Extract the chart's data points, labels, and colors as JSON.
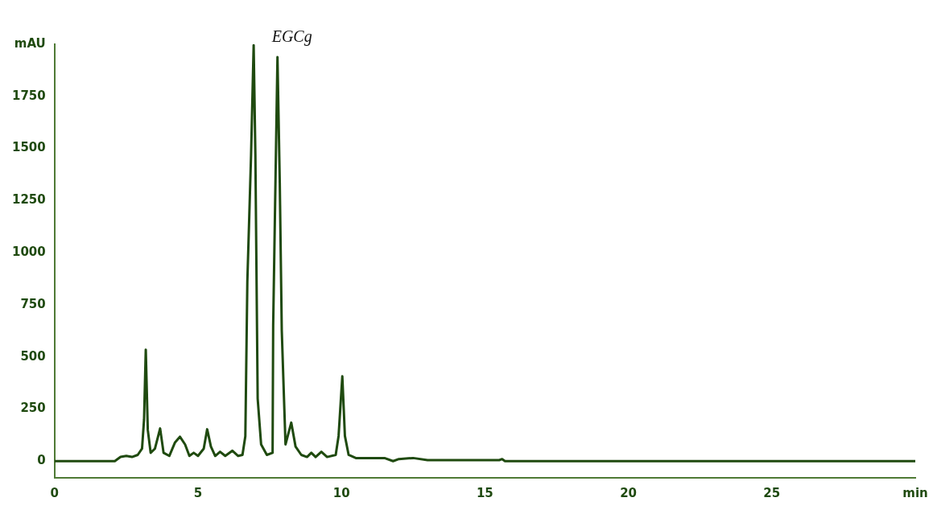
{
  "chart_data": {
    "type": "line",
    "annotations": [
      {
        "text": "EGCg",
        "x": 7.77,
        "y": 1938
      }
    ],
    "series": [
      {
        "color": "#1f4a0f",
        "x": [
          0,
          2.1,
          2.3,
          2.5,
          2.7,
          2.9,
          3.05,
          3.12,
          3.18,
          3.25,
          3.35,
          3.5,
          3.68,
          3.8,
          4.0,
          4.2,
          4.37,
          4.55,
          4.7,
          4.85,
          5.0,
          5.2,
          5.32,
          5.45,
          5.6,
          5.77,
          5.95,
          6.2,
          6.4,
          6.55,
          6.65,
          6.72,
          6.85,
          6.94,
          7.0,
          7.08,
          7.2,
          7.4,
          7.6,
          7.62,
          7.7,
          7.77,
          7.85,
          7.92,
          8.05,
          8.25,
          8.4,
          8.6,
          8.8,
          8.95,
          9.1,
          9.3,
          9.5,
          9.8,
          9.9,
          10.03,
          10.12,
          10.25,
          10.5,
          11.5,
          11.8,
          12.0,
          12.5,
          13,
          15.5,
          15.6,
          15.7,
          30
        ],
        "values": [
          0,
          0,
          20,
          25,
          20,
          30,
          60,
          200,
          535,
          150,
          40,
          60,
          157,
          40,
          25,
          90,
          117,
          80,
          25,
          40,
          25,
          60,
          153,
          70,
          25,
          45,
          25,
          50,
          25,
          30,
          120,
          862,
          1470,
          1995,
          1470,
          300,
          80,
          30,
          40,
          649,
          1338,
          1938,
          1338,
          625,
          80,
          185,
          70,
          30,
          20,
          40,
          20,
          45,
          20,
          30,
          121,
          407,
          121,
          30,
          15,
          15,
          0,
          10,
          15,
          5,
          5,
          10,
          0,
          0
        ]
      }
    ],
    "xlim": [
      0,
      30
    ],
    "xticks": [
      0,
      5,
      10,
      15,
      20,
      25,
      {
        "value": 30,
        "label": "min"
      }
    ],
    "ylim": [
      -80,
      2000
    ],
    "yticks": [
      0,
      250,
      500,
      750,
      1000,
      1250,
      1500,
      1750,
      {
        "value": 2000,
        "label": "mAU"
      }
    ],
    "grid": false,
    "legend": false,
    "marker": "none",
    "line_style": "solid"
  }
}
